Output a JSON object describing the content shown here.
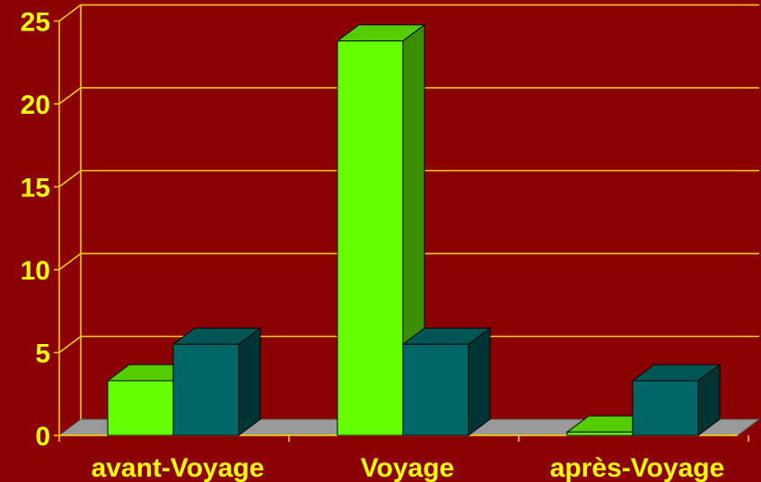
{
  "chart_data": {
    "type": "bar",
    "style": "3d-clustered-column",
    "categories": [
      "avant-Voyage",
      "Voyage",
      "après-Voyage"
    ],
    "series": [
      {
        "values": [
          3.3,
          23.8,
          0.2
        ]
      },
      {
        "values": [
          5.5,
          5.5,
          3.3
        ]
      }
    ],
    "ylim": [
      0,
      25
    ],
    "yticks": [
      0,
      5,
      10,
      15,
      20,
      25
    ],
    "grid": true,
    "legend": "none",
    "title": "",
    "xlabel": "",
    "ylabel": ""
  },
  "colors": {
    "background": "#8b0000",
    "gridlines": "#ffd700",
    "text": "#ffff00",
    "floor": "#9a9a9a",
    "series_front": [
      "#66ff00",
      "#006666"
    ],
    "series_top": [
      "#55cc00",
      "#005555"
    ],
    "series_side": [
      "#3b8f00",
      "#003333"
    ]
  }
}
